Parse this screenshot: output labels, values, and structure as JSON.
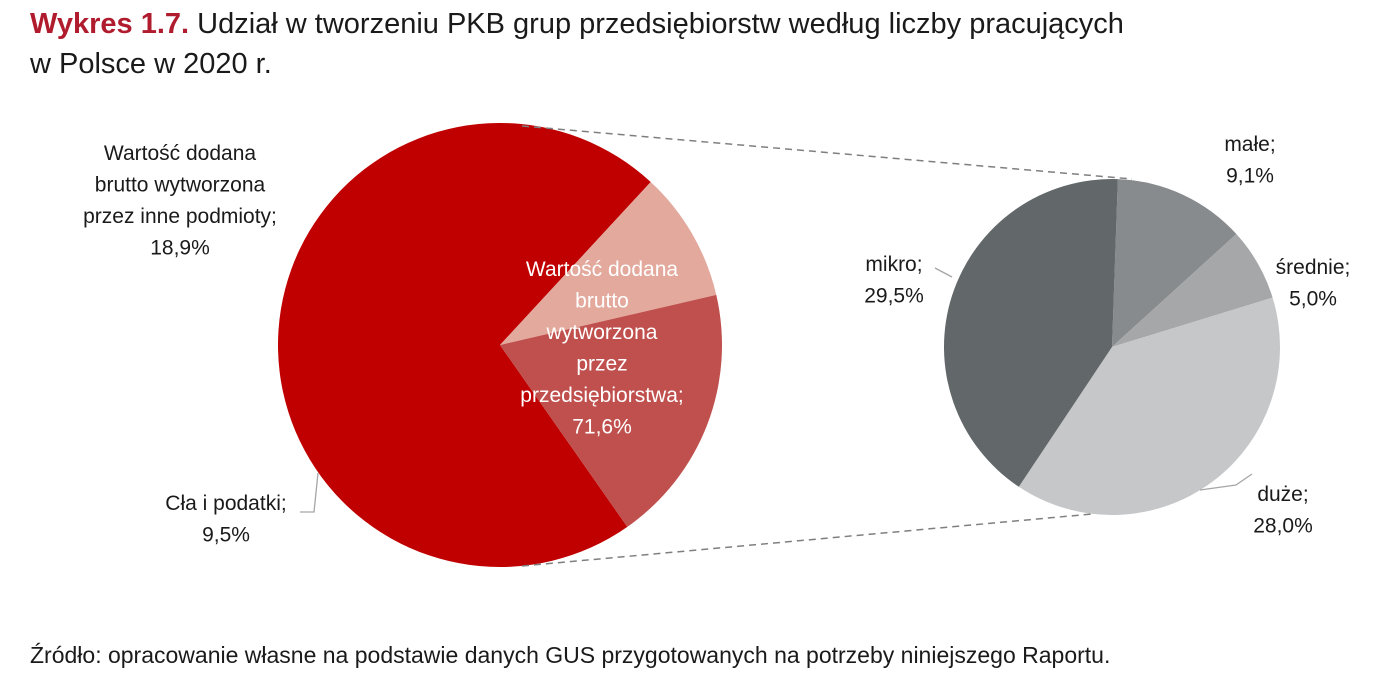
{
  "figure": {
    "label": "Wykres 1.7.",
    "title_line1": "Udział w tworzeniu PKB grup przedsiębiorstw według liczby pracujących",
    "title_line2": "w Polsce w 2020 r.",
    "source": "Źródło: opracowanie własne na podstawie danych GUS przygotowanych na potrzeby niniejszego Raportu."
  },
  "chart_data": [
    {
      "type": "pie",
      "title": "",
      "slices": [
        {
          "label_lines": [
            "Wartość dodana",
            "brutto",
            "wytworzona",
            "przez",
            "przedsiębiorstwa;",
            "71,6%"
          ],
          "value": 71.6,
          "color": "#c00000"
        },
        {
          "label_lines": [
            "Cła i podatki;",
            "9,5%"
          ],
          "value": 9.5,
          "color": "#e3a99d"
        },
        {
          "label_lines": [
            "Wartość dodana",
            "brutto wytworzona",
            "przez inne podmioty;",
            "18,9%"
          ],
          "value": 18.9,
          "color": "#c0504d"
        }
      ]
    },
    {
      "type": "pie",
      "title": "",
      "slices": [
        {
          "label_lines": [
            "małe;",
            "9,1%"
          ],
          "value": 9.1,
          "color": "#888b8d"
        },
        {
          "label_lines": [
            "średnie;",
            "5,0%"
          ],
          "value": 5.0,
          "color": "#a5a7a9"
        },
        {
          "label_lines": [
            "duże;",
            "28,0%"
          ],
          "value": 28.0,
          "color": "#c5c7c9"
        },
        {
          "label_lines": [
            "mikro;",
            "29,5%"
          ],
          "value": 29.5,
          "color": "#62676a"
        }
      ]
    }
  ]
}
